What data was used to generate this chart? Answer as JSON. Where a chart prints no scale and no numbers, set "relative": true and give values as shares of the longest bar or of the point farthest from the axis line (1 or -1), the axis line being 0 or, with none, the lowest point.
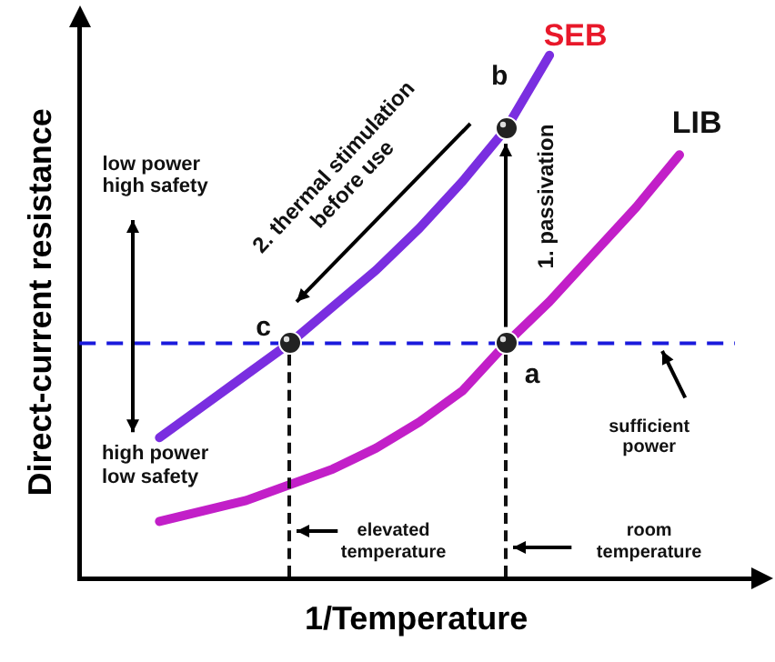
{
  "chart_data": {
    "type": "line",
    "xlabel": "1/Temperature",
    "ylabel": "Direct-current resistance",
    "relative": true,
    "categories": [
      null,
      null,
      null,
      null,
      null,
      null,
      null,
      null,
      null,
      null,
      null,
      null,
      null
    ],
    "series": [
      {
        "name": "SEB",
        "color": "#7a2ee0",
        "values": [
          0.27,
          0.33,
          0.39,
          0.45,
          0.52,
          0.59,
          0.67,
          0.76,
          0.86,
          1.0,
          null,
          null,
          null
        ]
      },
      {
        "name": "LIB",
        "color": "#c21fc8",
        "values": [
          0.11,
          0.13,
          0.15,
          0.18,
          0.21,
          0.25,
          0.3,
          0.36,
          0.45,
          0.53,
          0.62,
          0.71,
          0.81
        ]
      }
    ],
    "ref_lines": [
      {
        "axis": "y",
        "value": 0.45,
        "color": "#1a1adc",
        "line_style": "dashed"
      }
    ],
    "annotations": [
      "a",
      "b",
      "c",
      "1. passivation",
      "2. thermal stimulation\nbefore use",
      "low power\nhigh safety",
      "high power\nlow safety",
      "sufficient\npower",
      "elevated\ntemperature",
      "room\ntemperature"
    ]
  }
}
